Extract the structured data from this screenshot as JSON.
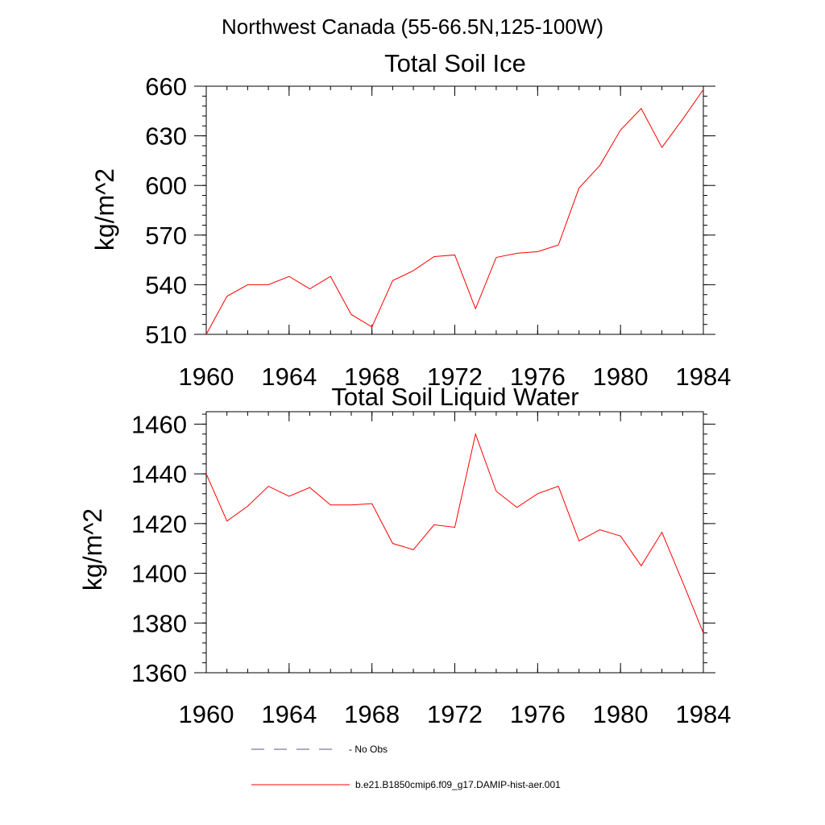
{
  "figure_title": "Northwest Canada (55-66.5N,125-100W)",
  "legend": [
    {
      "label": "No Obs",
      "style": "dashed",
      "color": "#5a5a7a"
    },
    {
      "label": "b.e21.B1850cmip6.f09_g17.DAMIP-hist-aer.001",
      "style": "solid",
      "color": "#ff0000"
    }
  ],
  "chart_data": [
    {
      "type": "line",
      "title": "Total Soil Ice",
      "ylabel": "kg/m^2",
      "xlabel": "",
      "xlim": [
        1960,
        1984
      ],
      "ylim": [
        510,
        660
      ],
      "xticks": [
        1960,
        1964,
        1968,
        1972,
        1976,
        1980,
        1984
      ],
      "yticks": [
        510,
        540,
        570,
        600,
        630,
        660
      ],
      "x": [
        1960,
        1961,
        1962,
        1963,
        1964,
        1965,
        1966,
        1967,
        1968,
        1969,
        1970,
        1971,
        1972,
        1973,
        1974,
        1975,
        1976,
        1977,
        1978,
        1979,
        1980,
        1981,
        1982,
        1983,
        1984
      ],
      "series": [
        {
          "color": "#ff0000",
          "values": [
            510,
            533,
            540,
            540,
            545,
            537.5,
            545,
            522,
            514.5,
            542.5,
            548.5,
            557,
            558,
            525.5,
            556.5,
            559,
            560,
            564,
            598.5,
            612,
            633.5,
            646.5,
            623,
            640,
            658
          ]
        }
      ]
    },
    {
      "type": "line",
      "title": "Total Soil Liquid Water",
      "ylabel": "kg/m^2",
      "xlabel": "",
      "xlim": [
        1960,
        1984
      ],
      "ylim": [
        1360,
        1465
      ],
      "xticks": [
        1960,
        1964,
        1968,
        1972,
        1976,
        1980,
        1984
      ],
      "yticks": [
        1360,
        1380,
        1400,
        1420,
        1440,
        1460
      ],
      "x": [
        1960,
        1961,
        1962,
        1963,
        1964,
        1965,
        1966,
        1967,
        1968,
        1969,
        1970,
        1971,
        1972,
        1973,
        1974,
        1975,
        1976,
        1977,
        1978,
        1979,
        1980,
        1981,
        1982,
        1983,
        1984
      ],
      "series": [
        {
          "color": "#ff0000",
          "values": [
            1440,
            1421,
            1427,
            1435,
            1431,
            1434.5,
            1427.5,
            1427.5,
            1428,
            1412,
            1409.5,
            1419.5,
            1418.5,
            1456,
            1433,
            1426.5,
            1432,
            1435,
            1413,
            1417.5,
            1415,
            1403,
            1416.5,
            1396.5,
            1376
          ]
        }
      ]
    }
  ]
}
